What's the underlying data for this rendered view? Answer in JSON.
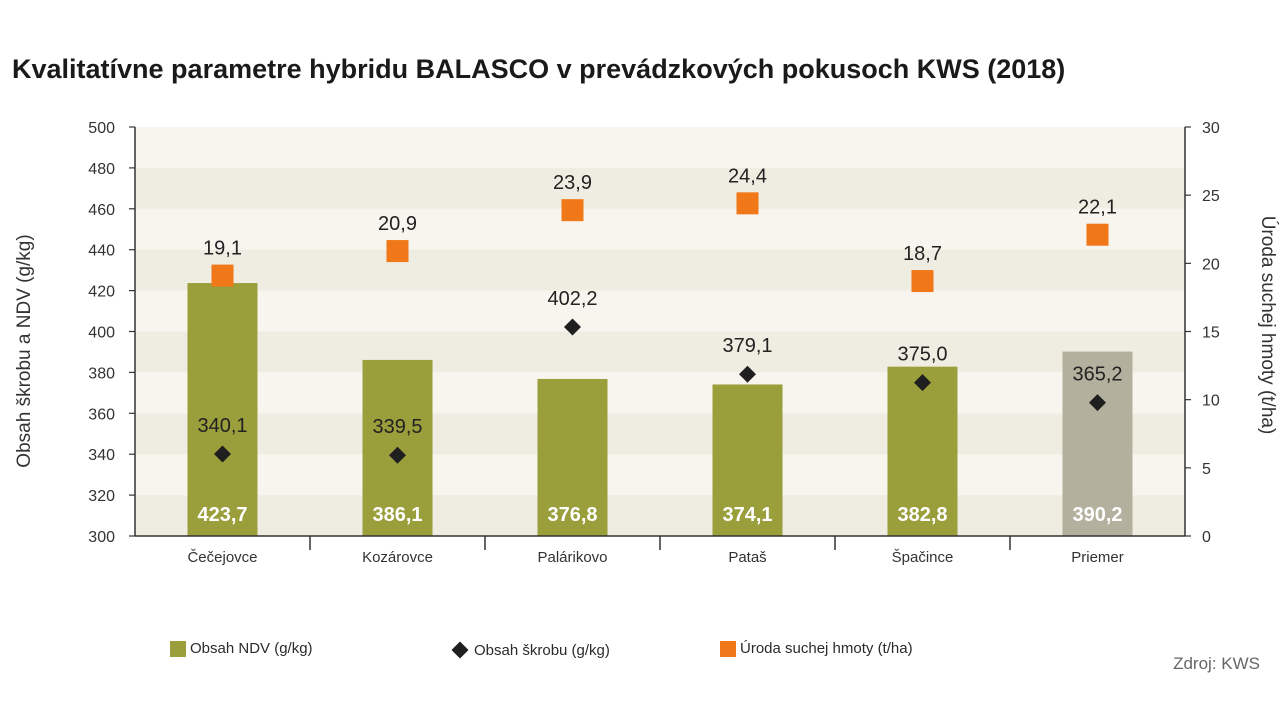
{
  "chart_data": {
    "type": "bar",
    "title": "Kvalitatívne parametre hybridu BALASCO v prevádzkových pokusoch KWS (2018)",
    "categories": [
      "Čečejovce",
      "Kozárovce",
      "Palárikovo",
      "Pataš",
      "Špačince",
      "Priemer"
    ],
    "ylabel": "Obsah škrobu a NDV (g/kg)",
    "y2label": "Úroda suchej hmoty (t/ha)",
    "ylim": [
      300,
      500
    ],
    "y2lim": [
      0,
      30
    ],
    "yticks": [
      "300",
      "320",
      "340",
      "360",
      "380",
      "400",
      "420",
      "440",
      "460",
      "480",
      "500"
    ],
    "y2ticks": [
      "0",
      "5",
      "10",
      "15",
      "20",
      "25",
      "30"
    ],
    "series": [
      {
        "name": "Obsah NDV (g/kg)",
        "kind": "bar",
        "axis": "left",
        "values": [
          423.7,
          386.1,
          376.8,
          374.1,
          382.8,
          390.2
        ],
        "labels": [
          "423,7",
          "386,1",
          "376,8",
          "374,1",
          "382,8",
          "390,2"
        ],
        "color": "#9a9e3b",
        "highlight_color": "#b3b09d"
      },
      {
        "name": "Obsah škrobu (g/kg)",
        "kind": "marker-diamond",
        "axis": "left",
        "values": [
          340.1,
          339.5,
          402.2,
          379.1,
          375.0,
          365.2
        ],
        "labels": [
          "340,1",
          "339,5",
          "402,2",
          "379,1",
          "375,0",
          "365,2"
        ],
        "color": "#1f1f1f"
      },
      {
        "name": "Úroda suchej hmoty (t/ha)",
        "kind": "marker-square",
        "axis": "right",
        "values": [
          19.1,
          20.9,
          23.9,
          24.4,
          18.7,
          22.1
        ],
        "labels": [
          "19,1",
          "20,9",
          "23,9",
          "24,4",
          "18,7",
          "22,1"
        ],
        "color": "#f07818"
      }
    ],
    "grid": "alternating-bands",
    "legend_position": "bottom",
    "source": "Zdroj: KWS"
  }
}
